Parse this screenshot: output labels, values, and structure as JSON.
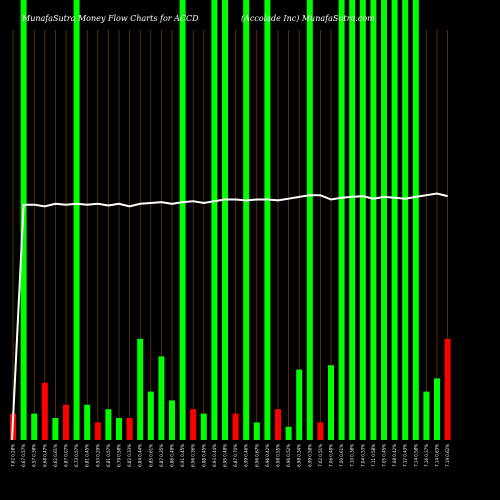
{
  "chart_data": {
    "type": "bar",
    "title_left": "MunafaSutra  Money Flow  Charts for ACCD",
    "title_right": "(Accolade  Inc) MunafaSutra.com",
    "colors": {
      "background": "#000000",
      "gridline": "#8a4a00",
      "green": "#00ff00",
      "red": "#ff0000",
      "line": "#ffffff"
    },
    "grid": true,
    "ylim_bars": [
      0,
      100
    ],
    "ylim_line": [
      0,
      100
    ],
    "categories": [
      "7.62 0.28%",
      "6.67 0.57%",
      "6.57 0.38%",
      "6.68 0.47%",
      "6.62 0.61%",
      "6.87 0.07%",
      "6.73 0.57%",
      "6.81 0.45%",
      "6.93 0.29%",
      "6.81 0.57%",
      "6.79 0.58%",
      "6.82 0.33%",
      "6.84 0.44%",
      "6.85 0.61%",
      "6.87 0.35%",
      "6.86 0.49%",
      "6.91 0.45%",
      "6.96 0.36%",
      "6.88 0.45%",
      "6.93 0.44%",
      "6.95 0.48%",
      "6.87 0.70%",
      "6.99 0.46%",
      "6.96 0.67%",
      "6.96 0.42%",
      "6.98 0.55%",
      "6.96 0.52%",
      "6.98 0.34%",
      "6.99 0.58%",
      "7.02 0.51%",
      "7.06 0.48%",
      "7.00 0.61%",
      "7.10 0.38%",
      "7.04 0.53%",
      "7.11 0.58%",
      "7.05 0.45%",
      "7.08 0.42%",
      "7.12 0.43%",
      "7.14 0.58%",
      "7.16 0.37%",
      "7.14 0.63%",
      "7.19 0.62%"
    ],
    "bar_values": [
      6,
      100,
      6,
      13,
      5,
      8,
      100,
      8,
      4,
      7,
      5,
      5,
      23,
      11,
      19,
      9,
      100,
      7,
      6,
      100,
      100,
      6,
      100,
      4,
      100,
      7,
      3,
      16,
      100,
      4,
      17,
      100,
      100,
      100,
      100,
      100,
      100,
      100,
      100,
      11,
      14,
      23
    ],
    "bar_colors": [
      "red",
      "green",
      "green",
      "red",
      "green",
      "red",
      "green",
      "green",
      "red",
      "green",
      "green",
      "red",
      "green",
      "green",
      "green",
      "green",
      "green",
      "red",
      "green",
      "green",
      "green",
      "red",
      "green",
      "green",
      "green",
      "red",
      "green",
      "green",
      "green",
      "red",
      "green",
      "green",
      "green",
      "green",
      "green",
      "green",
      "green",
      "green",
      "green",
      "green",
      "green",
      "red"
    ],
    "line_values": [
      0,
      76.2,
      76.2,
      76.0,
      76.3,
      76.2,
      76.3,
      76.2,
      76.3,
      76.1,
      76.3,
      76.0,
      76.3,
      76.4,
      76.5,
      76.3,
      76.5,
      76.6,
      76.4,
      76.6,
      76.8,
      76.8,
      76.7,
      76.8,
      76.8,
      76.7,
      76.9,
      77.1,
      77.3,
      77.3,
      76.8,
      77.0,
      77.1,
      77.2,
      76.9,
      77.1,
      77.0,
      76.9,
      77.1,
      77.3,
      77.5,
      77.2
    ]
  }
}
